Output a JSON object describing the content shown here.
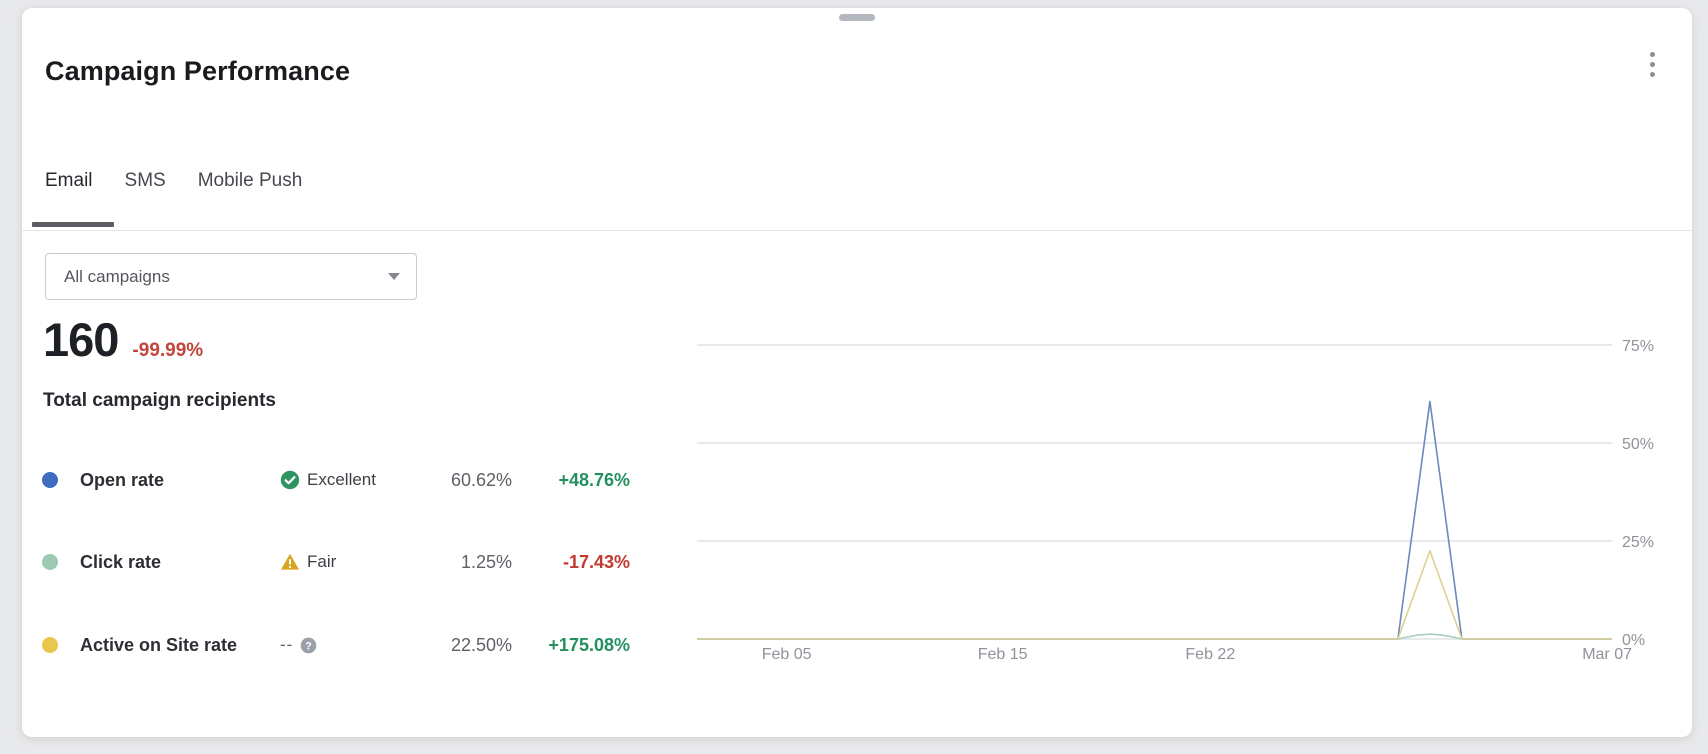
{
  "header": {
    "title": "Campaign Performance"
  },
  "tabs": [
    {
      "label": "Email",
      "active": true
    },
    {
      "label": "SMS",
      "active": false
    },
    {
      "label": "Mobile Push",
      "active": false
    }
  ],
  "filter": {
    "value": "All campaigns"
  },
  "summary": {
    "value": "160",
    "delta": "-99.99%",
    "delta_color": "#c0453c",
    "label": "Total campaign recipients"
  },
  "metrics": [
    {
      "label": "Open rate",
      "dot_color": "#3f6ec0",
      "badge": {
        "label": "Excellent",
        "color": "#2e9560",
        "icon": "check-circle"
      },
      "value": "60.62%",
      "delta": "+48.76%",
      "delta_color": "#23915f"
    },
    {
      "label": "Click rate",
      "dot_color": "#9ccbb4",
      "badge": {
        "label": "Fair",
        "color": "#d9a521",
        "icon": "warning-triangle"
      },
      "value": "1.25%",
      "delta": "-17.43%",
      "delta_color": "#c13a31"
    },
    {
      "label": "Active on Site rate",
      "dot_color": "#e8c74d",
      "badge": {
        "label": "--",
        "color": "#9aa0a7",
        "icon": "help-circle"
      },
      "value": "22.50%",
      "delta": "+175.08%",
      "delta_color": "#23915f"
    }
  ],
  "chart_data": {
    "type": "line",
    "title": "",
    "legend": [
      "Open rate",
      "Click rate",
      "Active on Site rate"
    ],
    "legend_position": "left-stat-list",
    "grid": true,
    "x_axis": {
      "ticks": [
        {
          "label": "Feb 05",
          "pos": 0.098
        },
        {
          "label": "Feb 15",
          "pos": 0.334
        },
        {
          "label": "Feb 22",
          "pos": 0.561
        },
        {
          "label": "Mar 07",
          "pos": 1.0,
          "anchor": "end"
        }
      ]
    },
    "y_axis": {
      "min": 0,
      "max": 78,
      "labels_position": "right",
      "ticks": [
        {
          "label": "0%",
          "value": 0
        },
        {
          "label": "25%",
          "value": 25
        },
        {
          "label": "50%",
          "value": 50
        },
        {
          "label": "75%",
          "value": 75
        }
      ]
    },
    "series": [
      {
        "name": "Open rate",
        "color": "#6d89bb",
        "points": [
          [
            0,
            0
          ],
          [
            0.766,
            0
          ],
          [
            0.801,
            60.62
          ],
          [
            0.836,
            0
          ],
          [
            1,
            0
          ]
        ]
      },
      {
        "name": "Click rate",
        "color": "#a6cfbd",
        "points": [
          [
            0,
            0
          ],
          [
            0.766,
            0
          ],
          [
            0.776,
            0.5
          ],
          [
            0.788,
            1.0
          ],
          [
            0.801,
            1.25
          ],
          [
            0.814,
            1.0
          ],
          [
            0.826,
            0.5
          ],
          [
            0.836,
            0
          ],
          [
            1,
            0
          ]
        ]
      },
      {
        "name": "Active on Site rate",
        "color": "#ddd193",
        "points": [
          [
            0,
            0
          ],
          [
            0.766,
            0
          ],
          [
            0.801,
            22.5
          ],
          [
            0.836,
            0
          ],
          [
            1,
            0
          ]
        ]
      }
    ]
  }
}
